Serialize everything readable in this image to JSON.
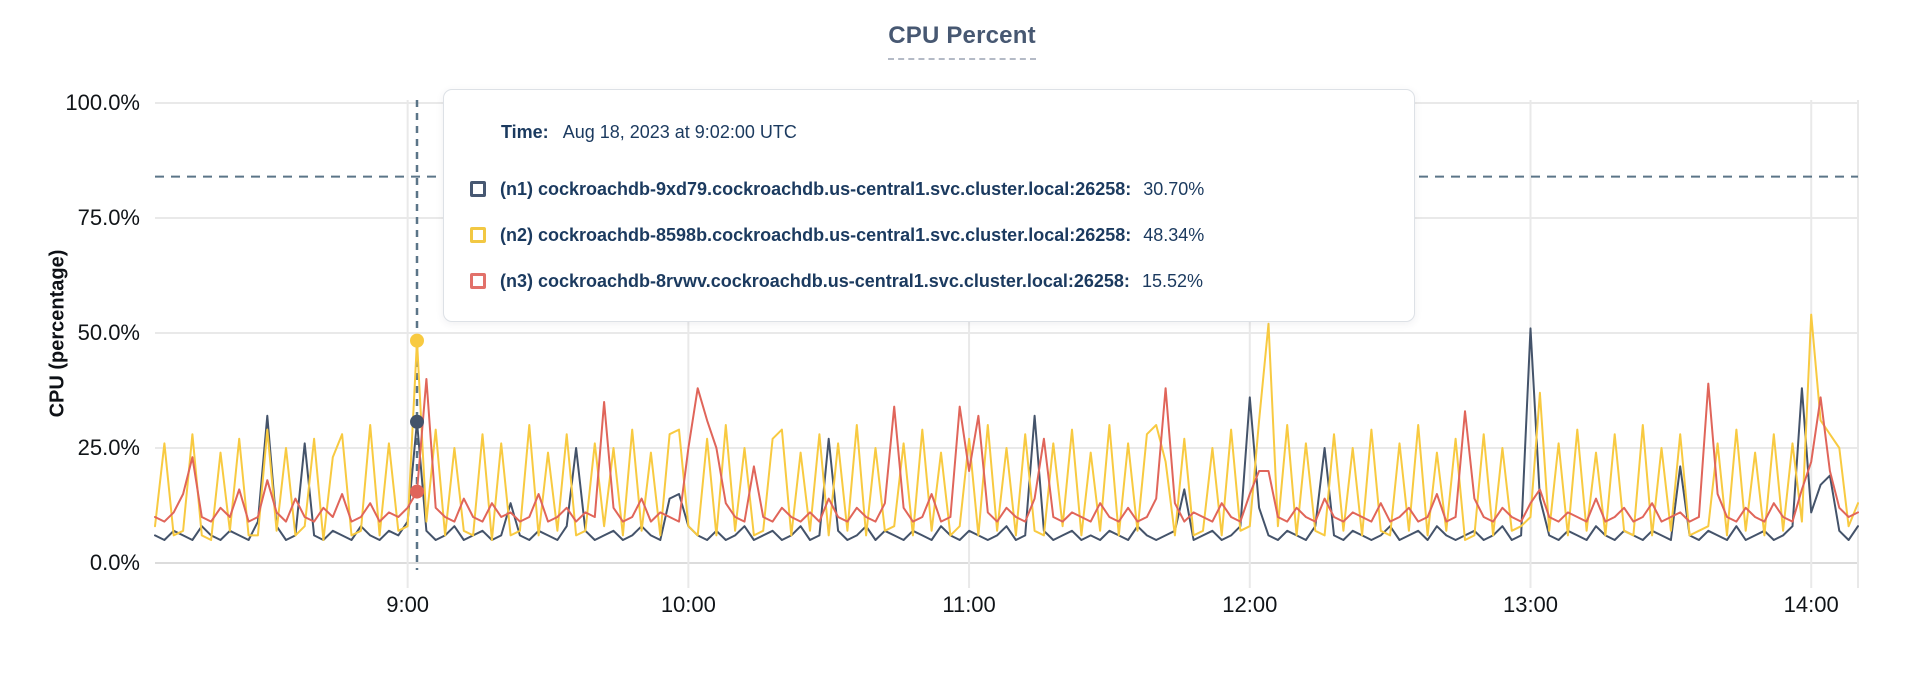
{
  "title": "CPU Percent",
  "y_axis": {
    "label": "CPU (percentage)",
    "ticks": [
      "100.0%",
      "75.0%",
      "50.0%",
      "25.0%",
      "0.0%"
    ],
    "tick_pcts": [
      100,
      75,
      50,
      25,
      0
    ]
  },
  "x_axis": {
    "ticks": [
      "9:00",
      "10:00",
      "11:00",
      "12:00",
      "13:00",
      "14:00"
    ],
    "tick_minutes": [
      540,
      600,
      660,
      720,
      780,
      840
    ]
  },
  "tooltip": {
    "time_label": "Time:",
    "time_value": "Aug 18, 2023 at 9:02:00 UTC",
    "rows": [
      {
        "label": "(n1) cockroachdb-9xd79.cockroachdb.us-central1.svc.cluster.local:26258:",
        "value": "30.70%",
        "color": "#475872"
      },
      {
        "label": "(n2) cockroachdb-8598b.cockroachdb.us-central1.svc.cluster.local:26258:",
        "value": "48.34%",
        "color": "#f2c843"
      },
      {
        "label": "(n3) cockroachdb-8rvwv.cockroachdb.us-central1.svc.cluster.local:26258:",
        "value": "15.52%",
        "color": "#e2716a"
      }
    ]
  },
  "colors": {
    "title": "#475872",
    "grid": "#e9e9e9",
    "grid_zero": "#dcdcdc",
    "axis_text": "#101418",
    "dashed_guide": "#5b7588",
    "n1": "#44536a",
    "n2": "#f8ca41",
    "n3": "#e0655a"
  },
  "chart_data": {
    "type": "line",
    "title": "CPU Percent",
    "xlabel": "",
    "ylabel": "CPU (percentage)",
    "ylim": [
      0,
      100
    ],
    "grid": true,
    "legend_position": "tooltip-overlay",
    "x_start_min": 486,
    "x_step_min": 2,
    "x_tick_labels": [
      "9:00",
      "10:00",
      "11:00",
      "12:00",
      "13:00",
      "14:00"
    ],
    "y_tick_labels": [
      "0.0%",
      "25.0%",
      "50.0%",
      "75.0%",
      "100.0%"
    ],
    "threshold_pct": 84,
    "hover": {
      "time": "Aug 18, 2023 at 9:02:00 UTC",
      "time_min": 542,
      "values": {
        "n1": 30.7,
        "n2": 48.34,
        "n3": 15.52
      }
    },
    "series": [
      {
        "name": "(n1) cockroachdb-9xd79.cockroachdb.us-central1.svc.cluster.local:26258",
        "color": "#44536a",
        "values": [
          6,
          5,
          7,
          6,
          5,
          8,
          6,
          5,
          7,
          6,
          5,
          9,
          32,
          8,
          5,
          6,
          26,
          6,
          5,
          7,
          6,
          5,
          8,
          6,
          5,
          7,
          6,
          9,
          30.7,
          7,
          5,
          6,
          8,
          5,
          6,
          7,
          5,
          6,
          13,
          6,
          5,
          7,
          6,
          5,
          8,
          25,
          7,
          5,
          6,
          7,
          5,
          6,
          8,
          6,
          5,
          14,
          15,
          8,
          6,
          5,
          7,
          5,
          6,
          8,
          5,
          6,
          7,
          5,
          6,
          8,
          5,
          6,
          27,
          7,
          5,
          6,
          8,
          5,
          7,
          6,
          5,
          7,
          6,
          5,
          8,
          6,
          5,
          7,
          6,
          5,
          6,
          8,
          5,
          6,
          32,
          7,
          5,
          6,
          7,
          5,
          6,
          5,
          7,
          6,
          5,
          8,
          6,
          5,
          6,
          7,
          16,
          5,
          6,
          7,
          5,
          6,
          8,
          36,
          12,
          6,
          5,
          7,
          6,
          5,
          8,
          25,
          6,
          5,
          7,
          6,
          5,
          6,
          8,
          5,
          6,
          7,
          5,
          8,
          6,
          5,
          6,
          7,
          5,
          6,
          8,
          5,
          6,
          51,
          14,
          6,
          5,
          7,
          6,
          5,
          8,
          6,
          5,
          7,
          6,
          5,
          7,
          6,
          5,
          21,
          6,
          5,
          7,
          6,
          5,
          8,
          5,
          6,
          7,
          5,
          6,
          8,
          38,
          11,
          17,
          19,
          7,
          5,
          8
        ]
      },
      {
        "name": "(n2) cockroachdb-8598b.cockroachdb.us-central1.svc.cluster.local:26258",
        "color": "#f8ca41",
        "values": [
          8,
          26,
          6,
          7,
          28,
          6,
          5,
          24,
          7,
          27,
          6,
          6,
          29,
          7,
          25,
          6,
          8,
          27,
          5,
          23,
          28,
          6,
          7,
          30,
          6,
          26,
          7,
          8,
          48.34,
          9,
          29,
          6,
          25,
          7,
          6,
          28,
          5,
          26,
          6,
          7,
          30,
          6,
          24,
          7,
          28,
          6,
          7,
          26,
          8,
          25,
          6,
          29,
          7,
          24,
          6,
          28,
          29,
          8,
          6,
          27,
          6,
          30,
          7,
          25,
          6,
          7,
          27,
          29,
          6,
          24,
          7,
          28,
          6,
          26,
          7,
          30,
          6,
          25,
          7,
          8,
          26,
          6,
          29,
          7,
          24,
          6,
          8,
          27,
          6,
          30,
          7,
          25,
          6,
          28,
          7,
          6,
          26,
          8,
          29,
          6,
          24,
          7,
          30,
          6,
          26,
          7,
          28,
          30,
          22,
          6,
          27,
          6,
          7,
          25,
          6,
          29,
          7,
          8,
          31,
          52,
          8,
          30,
          6,
          26,
          7,
          6,
          28,
          7,
          25,
          6,
          29,
          7,
          6,
          26,
          7,
          30,
          6,
          24,
          7,
          27,
          5,
          6,
          28,
          6,
          25,
          7,
          8,
          10,
          37,
          7,
          26,
          6,
          29,
          7,
          24,
          6,
          28,
          7,
          6,
          30,
          6,
          25,
          7,
          28,
          6,
          7,
          8,
          26,
          6,
          29,
          7,
          24,
          6,
          28,
          7,
          26,
          9,
          54,
          31,
          28,
          25,
          8,
          13
        ]
      },
      {
        "name": "(n3) cockroachdb-8rvwv.cockroachdb.us-central1.svc.cluster.local:26258",
        "color": "#e0655a",
        "values": [
          10,
          9,
          11,
          15,
          23,
          10,
          9,
          12,
          10,
          16,
          9,
          10,
          18,
          11,
          9,
          14,
          10,
          9,
          12,
          10,
          15,
          9,
          10,
          13,
          9,
          11,
          10,
          12,
          15.52,
          40,
          12,
          10,
          9,
          14,
          10,
          9,
          13,
          10,
          11,
          9,
          10,
          15,
          9,
          10,
          12,
          9,
          11,
          10,
          35,
          12,
          9,
          10,
          14,
          9,
          11,
          10,
          9,
          25,
          38,
          31,
          25,
          13,
          10,
          9,
          21,
          10,
          9,
          12,
          10,
          9,
          11,
          9,
          14,
          10,
          9,
          12,
          10,
          9,
          13,
          34,
          12,
          9,
          10,
          15,
          9,
          10,
          34,
          20,
          32,
          11,
          9,
          12,
          10,
          9,
          14,
          27,
          10,
          9,
          11,
          10,
          9,
          13,
          10,
          9,
          12,
          9,
          10,
          14,
          38,
          13,
          9,
          11,
          10,
          9,
          13,
          10,
          9,
          15,
          20,
          20,
          10,
          9,
          12,
          10,
          9,
          14,
          10,
          9,
          11,
          10,
          9,
          13,
          9,
          10,
          12,
          9,
          10,
          15,
          9,
          10,
          33,
          14,
          10,
          9,
          12,
          10,
          9,
          13,
          16,
          10,
          9,
          11,
          10,
          9,
          14,
          9,
          10,
          12,
          9,
          10,
          13,
          9,
          10,
          11,
          9,
          10,
          39,
          15,
          10,
          9,
          12,
          10,
          9,
          13,
          10,
          9,
          16,
          22,
          36,
          20,
          12,
          10,
          11
        ]
      }
    ]
  }
}
